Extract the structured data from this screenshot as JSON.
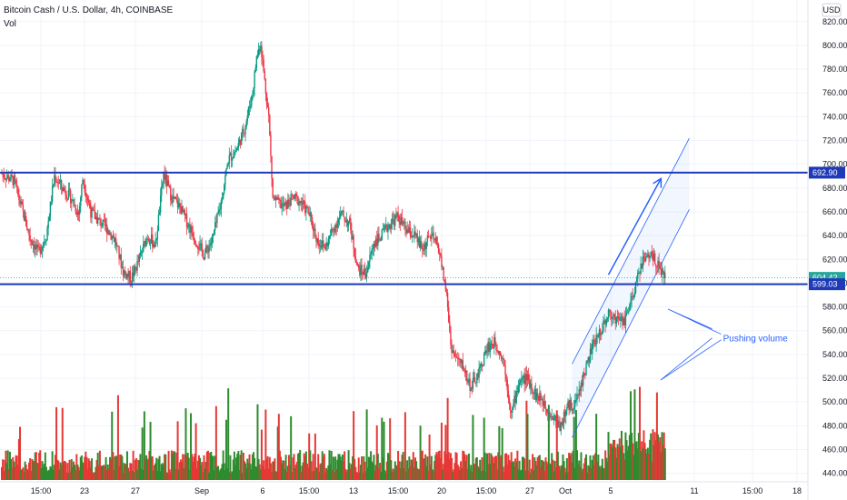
{
  "header": {
    "title": "Bitcoin Cash / U.S. Dollar, 4h, COINBASE",
    "indicator": "Vol"
  },
  "currency_badge": "USD",
  "colors": {
    "up": "#089981",
    "down": "#f23645",
    "vol_up": "#2e8b2e",
    "vol_down": "#e53935",
    "line": "#1e3ab8",
    "channel": "#2962ff",
    "current": "#26a69a"
  },
  "chart_data": {
    "type": "candlestick",
    "symbol": "Bitcoin Cash / U.S. Dollar",
    "interval": "4h",
    "exchange": "COINBASE",
    "y_axis": {
      "ticks": [
        440,
        460,
        480,
        500,
        520,
        540,
        560,
        580,
        600,
        620,
        640,
        660,
        680,
        700,
        720,
        740,
        760,
        780,
        800,
        820
      ],
      "range": [
        436,
        845
      ],
      "position": "right"
    },
    "x_axis": {
      "ticks": [
        "15:00",
        "23",
        "27",
        "Sep",
        "6",
        "15:00",
        "13",
        "15:00",
        "20",
        "15:00",
        "27",
        "Oct",
        "5",
        "11",
        "15:00",
        "18"
      ]
    },
    "horizontal_levels": [
      {
        "value": 692.9,
        "label": "692.90"
      },
      {
        "value": 599.03,
        "label": "599.03"
      }
    ],
    "current_price": {
      "value": 604.42,
      "label": "604.42"
    },
    "channel": {
      "lower_start": [
        141,
        470
      ],
      "lower_end": [
        170,
        662
      ],
      "upper_start": [
        141,
        532
      ],
      "upper_end": [
        170,
        722
      ]
    },
    "arrow": {
      "from": [
        150,
        607
      ],
      "to": [
        163,
        688
      ]
    },
    "annotation": {
      "text": "Pushing volume",
      "at": [
        157,
        560
      ]
    },
    "volume_spikes_note": "volume increasing into early October",
    "path_points": [
      [
        0,
        692
      ],
      [
        3,
        686
      ],
      [
        5,
        662
      ],
      [
        7,
        638
      ],
      [
        9,
        626
      ],
      [
        11,
        640
      ],
      [
        13,
        690
      ],
      [
        15,
        680
      ],
      [
        17,
        672
      ],
      [
        19,
        658
      ],
      [
        20,
        688
      ],
      [
        22,
        660
      ],
      [
        24,
        652
      ],
      [
        26,
        646
      ],
      [
        28,
        636
      ],
      [
        30,
        610
      ],
      [
        32,
        604
      ],
      [
        34,
        620
      ],
      [
        36,
        640
      ],
      [
        38,
        632
      ],
      [
        40,
        692
      ],
      [
        42,
        672
      ],
      [
        44,
        664
      ],
      [
        46,
        650
      ],
      [
        48,
        636
      ],
      [
        50,
        624
      ],
      [
        52,
        636
      ],
      [
        54,
        664
      ],
      [
        56,
        704
      ],
      [
        58,
        712
      ],
      [
        60,
        730
      ],
      [
        62,
        760
      ],
      [
        63,
        790
      ],
      [
        64,
        802
      ],
      [
        65,
        770
      ],
      [
        66,
        740
      ],
      [
        67,
        672
      ],
      [
        68,
        668
      ],
      [
        70,
        664
      ],
      [
        72,
        672
      ],
      [
        74,
        668
      ],
      [
        76,
        658
      ],
      [
        78,
        636
      ],
      [
        80,
        630
      ],
      [
        82,
        646
      ],
      [
        84,
        658
      ],
      [
        86,
        650
      ],
      [
        88,
        612
      ],
      [
        90,
        608
      ],
      [
        92,
        634
      ],
      [
        94,
        640
      ],
      [
        96,
        650
      ],
      [
        98,
        656
      ],
      [
        100,
        644
      ],
      [
        102,
        640
      ],
      [
        104,
        628
      ],
      [
        106,
        640
      ],
      [
        108,
        630
      ],
      [
        110,
        590
      ],
      [
        111,
        548
      ],
      [
        112,
        538
      ],
      [
        114,
        530
      ],
      [
        116,
        512
      ],
      [
        118,
        524
      ],
      [
        120,
        546
      ],
      [
        122,
        550
      ],
      [
        124,
        536
      ],
      [
        126,
        490
      ],
      [
        128,
        518
      ],
      [
        130,
        520
      ],
      [
        132,
        506
      ],
      [
        134,
        500
      ],
      [
        136,
        488
      ],
      [
        138,
        480
      ],
      [
        140,
        496
      ],
      [
        142,
        500
      ],
      [
        144,
        524
      ],
      [
        146,
        546
      ],
      [
        148,
        560
      ],
      [
        150,
        574
      ],
      [
        152,
        570
      ],
      [
        154,
        566
      ],
      [
        156,
        588
      ],
      [
        158,
        616
      ],
      [
        160,
        624
      ],
      [
        162,
        618
      ],
      [
        164,
        604
      ]
    ],
    "volume_path_points_note": "bars alternate green/red, heights relative"
  }
}
